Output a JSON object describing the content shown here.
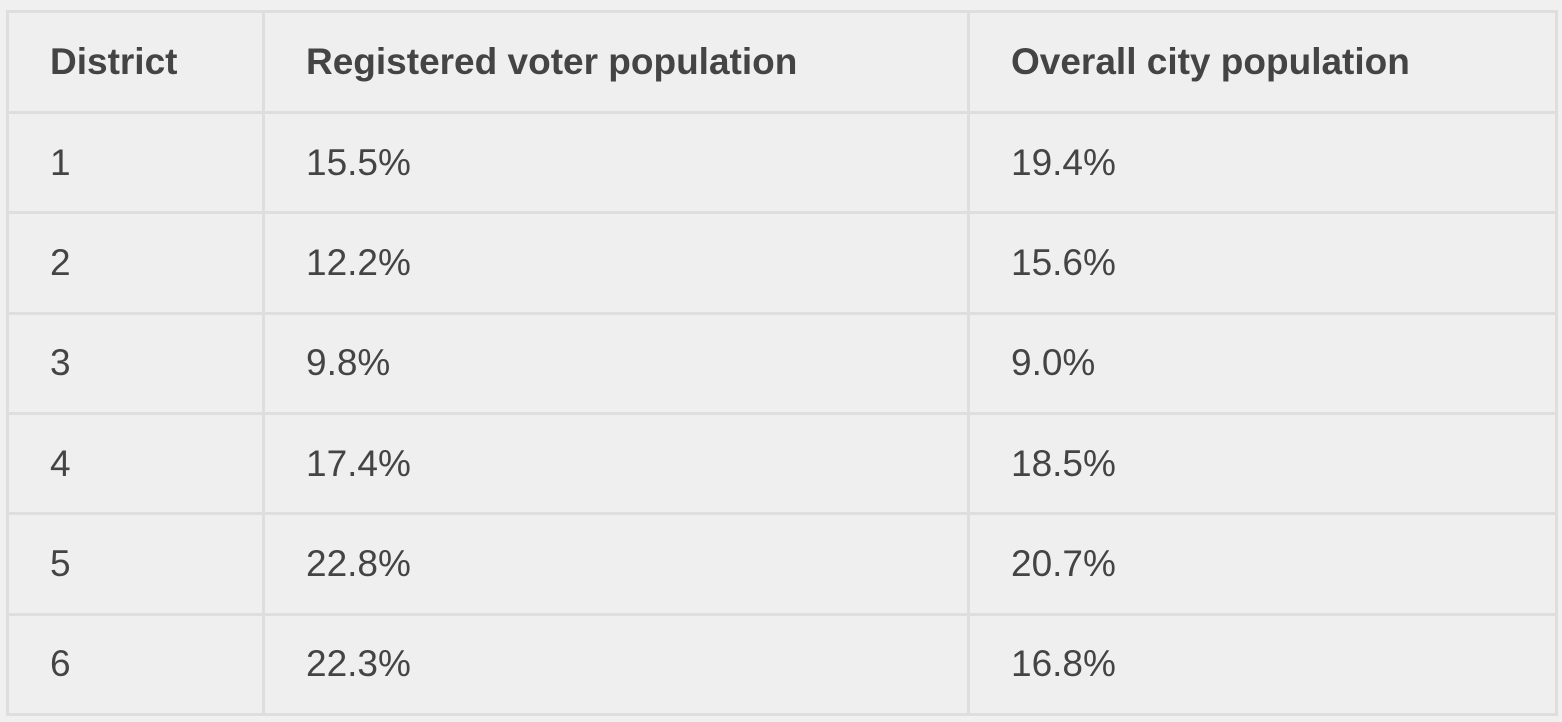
{
  "table": {
    "headers": [
      "District",
      "Registered voter population",
      "Overall city population"
    ],
    "rows": [
      [
        "1",
        "15.5%",
        "19.4%"
      ],
      [
        "2",
        "12.2%",
        "15.6%"
      ],
      [
        "3",
        "9.8%",
        "9.0%"
      ],
      [
        "4",
        "17.4%",
        "18.5%"
      ],
      [
        "5",
        "22.8%",
        "20.7%"
      ],
      [
        "6",
        "22.3%",
        "16.8%"
      ]
    ]
  }
}
